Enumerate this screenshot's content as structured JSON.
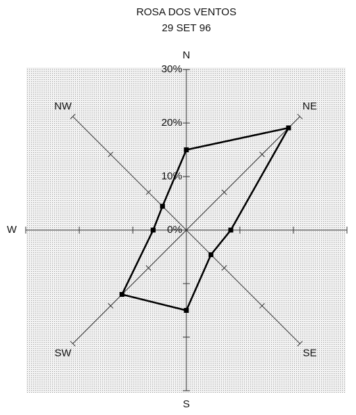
{
  "chart_data": {
    "type": "radar",
    "title": "ROSA DOS VENTOS",
    "subtitle": "29 SET 96",
    "categories": [
      "N",
      "NE",
      "E",
      "SE",
      "S",
      "SW",
      "W",
      "NW"
    ],
    "series": [
      {
        "name": null,
        "color": "#000000",
        "values": [
          15,
          27,
          8.3,
          6.5,
          15,
          17,
          6.2,
          6.3
        ]
      }
    ],
    "ylim": [
      0,
      30
    ],
    "yticks": [
      {
        "value": 0,
        "label": "0%"
      },
      {
        "value": 10,
        "label": "10%"
      },
      {
        "value": 20,
        "label": "20%"
      },
      {
        "value": 30,
        "label": "30%"
      }
    ],
    "grid": true
  }
}
